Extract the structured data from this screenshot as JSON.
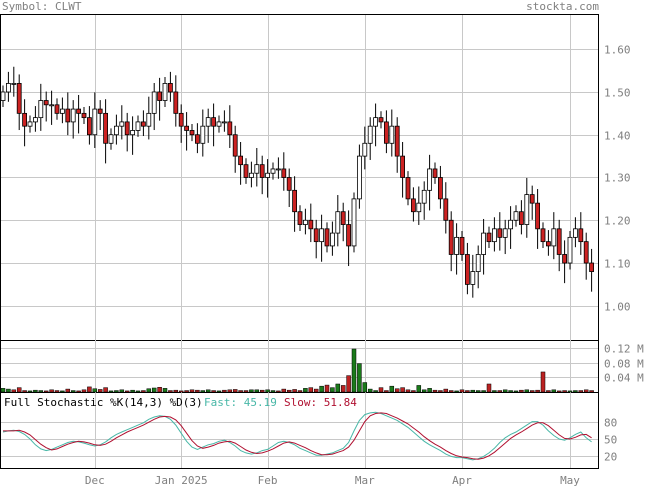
{
  "header": {
    "symbol": "Symbol: CLWT",
    "site": "stockta.com"
  },
  "stochastic": {
    "title": "Full Stochastic %K(14,3) %D(3)",
    "fast_label": "Fast: 45.19",
    "slow_label": "Slow: 51.84",
    "fast_color": "#48b7a7",
    "slow_color": "#b01030",
    "yticks": [
      "80",
      "50",
      "20"
    ]
  },
  "chart_data": [
    {
      "type": "candlestick",
      "title": "",
      "ylim": [
        0.92,
        1.68
      ],
      "yticks": [
        1.0,
        1.1,
        1.2,
        1.3,
        1.4,
        1.5,
        1.6
      ],
      "ytick_labels": [
        "1.00",
        "1.10",
        "1.20",
        "1.30",
        "1.40",
        "1.50",
        "1.60"
      ],
      "xtick_labels": [
        "Dec",
        "Jan 2025",
        "Feb",
        "Mar",
        "Apr",
        "May"
      ],
      "grid": true,
      "up_color": "#ffffff",
      "down_color": "#cc2222",
      "series": [
        {
          "name": "",
          "close": [
            1.5,
            1.52,
            1.52,
            1.45,
            1.42,
            1.43,
            1.44,
            1.48,
            1.47,
            1.47,
            1.45,
            1.46,
            1.43,
            1.46,
            1.45,
            1.44,
            1.4,
            1.46,
            1.45,
            1.38,
            1.4,
            1.42,
            1.43,
            1.4,
            1.41,
            1.43,
            1.42,
            1.45,
            1.5,
            1.48,
            1.52,
            1.5,
            1.45,
            1.42,
            1.41,
            1.4,
            1.38,
            1.42,
            1.44,
            1.42,
            1.43,
            1.43,
            1.4,
            1.35,
            1.33,
            1.3,
            1.31,
            1.33,
            1.3,
            1.31,
            1.32,
            1.32,
            1.3,
            1.27,
            1.22,
            1.19,
            1.2,
            1.18,
            1.15,
            1.18,
            1.14,
            1.17,
            1.22,
            1.19,
            1.14,
            1.25,
            1.35,
            1.38,
            1.42,
            1.44,
            1.43,
            1.38,
            1.42,
            1.35,
            1.3,
            1.25,
            1.22,
            1.24,
            1.27,
            1.32,
            1.3,
            1.25,
            1.2,
            1.12,
            1.16,
            1.12,
            1.05,
            1.08,
            1.12,
            1.17,
            1.15,
            1.18,
            1.16,
            1.18,
            1.2,
            1.22,
            1.19,
            1.26,
            1.24,
            1.18,
            1.15,
            1.14,
            1.18,
            1.12,
            1.1,
            1.16,
            1.18,
            1.15,
            1.1,
            1.08
          ]
        }
      ]
    },
    {
      "type": "bar",
      "title": "",
      "ylim": [
        0,
        0.14
      ],
      "yticks": [
        0.04,
        0.08,
        0.12
      ],
      "ytick_labels": [
        "0.04 M",
        "0.08 M",
        "0.12 M"
      ],
      "grid": true,
      "series": [
        {
          "name": "",
          "values": [
            0.01,
            0.008,
            0.006,
            0.012,
            0.004,
            0.003,
            0.005,
            0.004,
            0.003,
            0.006,
            0.004,
            0.003,
            0.008,
            0.004,
            0.003,
            0.006,
            0.014,
            0.009,
            0.007,
            0.012,
            0.003,
            0.004,
            0.006,
            0.003,
            0.005,
            0.003,
            0.004,
            0.009,
            0.011,
            0.013,
            0.01,
            0.004,
            0.005,
            0.003,
            0.004,
            0.006,
            0.005,
            0.004,
            0.006,
            0.004,
            0.003,
            0.005,
            0.006,
            0.007,
            0.004,
            0.004,
            0.006,
            0.006,
            0.005,
            0.006,
            0.004,
            0.003,
            0.008,
            0.005,
            0.007,
            0.004,
            0.01,
            0.012,
            0.008,
            0.016,
            0.019,
            0.012,
            0.022,
            0.018,
            0.045,
            0.118,
            0.078,
            0.026,
            0.008,
            0.004,
            0.012,
            0.004,
            0.016,
            0.009,
            0.012,
            0.006,
            0.004,
            0.018,
            0.006,
            0.01,
            0.005,
            0.004,
            0.008,
            0.004,
            0.003,
            0.006,
            0.004,
            0.005,
            0.004,
            0.004,
            0.022,
            0.004,
            0.004,
            0.006,
            0.004,
            0.003,
            0.005,
            0.006,
            0.004,
            0.005,
            0.055,
            0.004,
            0.006,
            0.003,
            0.004,
            0.003,
            0.004,
            0.004,
            0.006,
            0.004
          ]
        },
        {
          "name": "",
          "up": [
            true,
            true,
            false,
            false,
            false,
            true,
            true,
            true,
            false,
            false,
            false,
            true,
            false,
            true,
            false,
            false,
            false,
            true,
            false,
            false,
            true,
            true,
            true,
            false,
            true,
            true,
            false,
            true,
            true,
            false,
            true,
            false,
            false,
            false,
            false,
            false,
            false,
            true,
            true,
            false,
            true,
            false,
            false,
            false,
            false,
            false,
            true,
            true,
            false,
            true,
            true,
            false,
            false,
            false,
            false,
            false,
            true,
            false,
            false,
            true,
            false,
            true,
            true,
            false,
            false,
            true,
            true,
            true,
            true,
            true,
            false,
            false,
            true,
            false,
            false,
            false,
            false,
            true,
            true,
            true,
            false,
            false,
            false,
            false,
            true,
            false,
            false,
            true,
            true,
            true,
            false,
            true,
            false,
            true,
            true,
            true,
            false,
            true,
            false,
            false,
            false,
            false,
            true,
            false,
            false,
            true,
            true,
            false,
            false,
            false
          ]
        }
      ]
    },
    {
      "type": "line",
      "title": "",
      "ylim": [
        0,
        100
      ],
      "series": [
        {
          "name": "Fast",
          "values": [
            62,
            64,
            65,
            63,
            58,
            50,
            40,
            33,
            30,
            32,
            36,
            40,
            44,
            46,
            45,
            43,
            40,
            38,
            40,
            45,
            52,
            58,
            62,
            66,
            70,
            74,
            78,
            84,
            88,
            90,
            89,
            84,
            74,
            60,
            46,
            36,
            32,
            36,
            40,
            42,
            46,
            48,
            44,
            38,
            30,
            26,
            24,
            26,
            30,
            32,
            38,
            44,
            46,
            44,
            40,
            34,
            30,
            26,
            22,
            22,
            24,
            26,
            30,
            34,
            44,
            64,
            82,
            92,
            95,
            96,
            94,
            90,
            86,
            82,
            76,
            70,
            62,
            54,
            46,
            40,
            35,
            30,
            24,
            20,
            18,
            18,
            16,
            14,
            16,
            20,
            26,
            34,
            44,
            52,
            58,
            62,
            68,
            74,
            80,
            80,
            74,
            64,
            56,
            50,
            48,
            52,
            58,
            62,
            52,
            45
          ]
        },
        {
          "name": "Slow",
          "values": [
            64,
            64,
            64,
            65,
            62,
            57,
            49,
            41,
            35,
            31,
            33,
            37,
            41,
            44,
            46,
            45,
            43,
            40,
            39,
            41,
            46,
            52,
            57,
            62,
            66,
            70,
            74,
            79,
            84,
            88,
            89,
            88,
            83,
            73,
            60,
            47,
            38,
            34,
            36,
            39,
            43,
            45,
            46,
            43,
            37,
            31,
            27,
            25,
            26,
            29,
            33,
            38,
            43,
            45,
            43,
            39,
            35,
            30,
            26,
            23,
            23,
            24,
            27,
            30,
            36,
            48,
            64,
            80,
            90,
            94,
            95,
            94,
            90,
            86,
            81,
            76,
            69,
            62,
            54,
            47,
            41,
            36,
            30,
            25,
            21,
            19,
            18,
            16,
            15,
            17,
            21,
            27,
            35,
            43,
            51,
            57,
            62,
            68,
            74,
            78,
            78,
            73,
            65,
            57,
            51,
            50,
            53,
            57,
            58,
            52
          ]
        }
      ]
    }
  ]
}
